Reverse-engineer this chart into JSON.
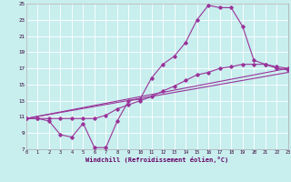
{
  "xlabel": "Windchill (Refroidissement éolien,°C)",
  "bg_color": "#c8eeee",
  "line_color": "#993399",
  "grid_color": "#ffffff",
  "xmin": 0,
  "xmax": 23,
  "ymin": 7,
  "ymax": 25,
  "yticks": [
    7,
    9,
    11,
    13,
    15,
    17,
    19,
    21,
    23,
    25
  ],
  "xticks": [
    0,
    1,
    2,
    3,
    4,
    5,
    6,
    7,
    8,
    9,
    10,
    11,
    12,
    13,
    14,
    15,
    16,
    17,
    18,
    19,
    20,
    21,
    22,
    23
  ],
  "line1_x": [
    0,
    1,
    2,
    3,
    4,
    5,
    6,
    7,
    8,
    9,
    10,
    11,
    12,
    13,
    14,
    15,
    16,
    17,
    18,
    19,
    20,
    21,
    22,
    23
  ],
  "line1_y": [
    10.8,
    10.8,
    10.5,
    8.8,
    8.5,
    10.2,
    7.2,
    7.2,
    10.5,
    13.0,
    13.2,
    15.8,
    17.5,
    18.5,
    20.2,
    23.0,
    24.8,
    24.5,
    24.5,
    22.2,
    18.0,
    17.5,
    17.0,
    16.8
  ],
  "line2_x": [
    0,
    1,
    2,
    3,
    4,
    5,
    6,
    7,
    8,
    9,
    10,
    11,
    12,
    13,
    14,
    15,
    16,
    17,
    18,
    19,
    20,
    21,
    22,
    23
  ],
  "line2_y": [
    10.8,
    10.8,
    10.8,
    10.8,
    10.8,
    10.8,
    10.8,
    11.2,
    12.0,
    12.5,
    13.0,
    13.5,
    14.2,
    14.8,
    15.5,
    16.2,
    16.5,
    17.0,
    17.2,
    17.5,
    17.5,
    17.5,
    17.2,
    17.0
  ],
  "line3_x": [
    0,
    23
  ],
  "line3_y": [
    10.8,
    17.0
  ],
  "line4_x": [
    0,
    23
  ],
  "line4_y": [
    10.8,
    16.5
  ]
}
